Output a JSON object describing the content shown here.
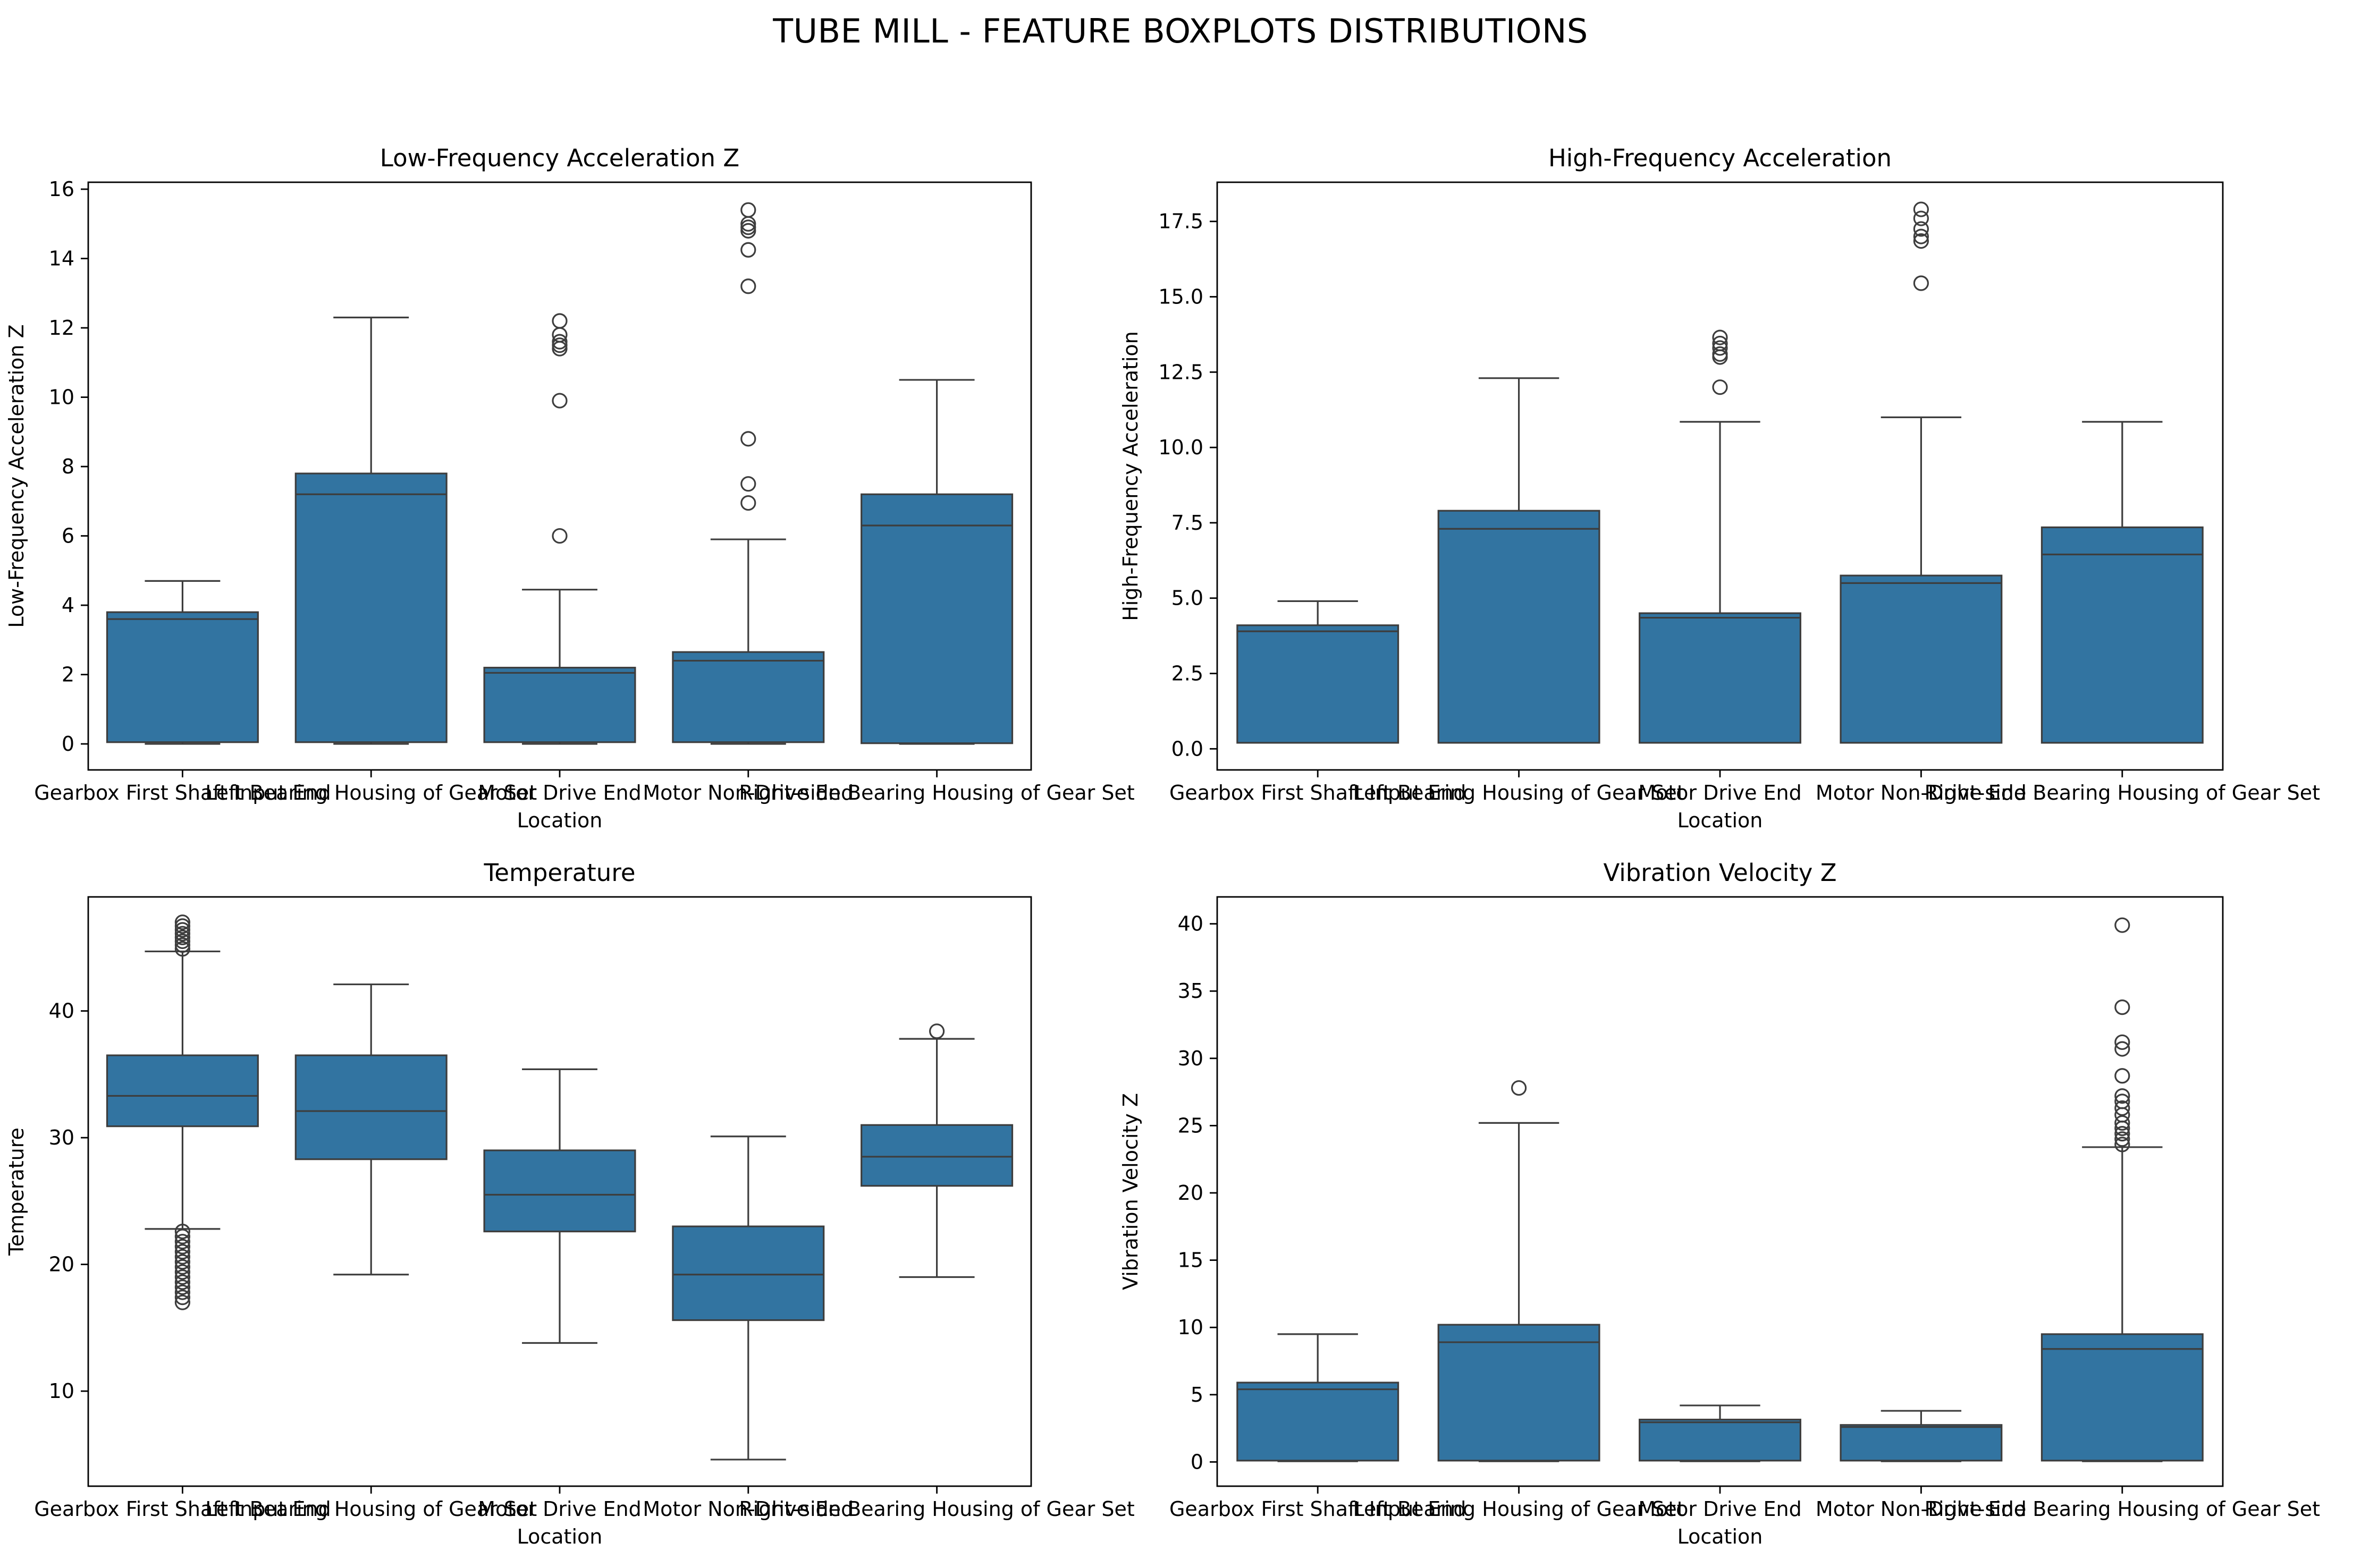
{
  "title": "TUBE MILL - FEATURE BOXPLOTS DISTRIBUTIONS",
  "colors": {
    "box_fill": "#3274a1",
    "edge": "#3d3d3d",
    "axes": "#000000"
  },
  "chart_data": [
    {
      "type": "boxplot",
      "title": "Low-Frequency Acceleration Z",
      "xlabel": "Location",
      "ylabel": "Low-Frequency Acceleration Z",
      "categories": [
        "Gearbox First Shaft Input End",
        "Left Bearing Housing of Gear Set",
        "Motor Drive End",
        "Motor Non-Drive End",
        "Right-side Bearing Housing of Gear Set"
      ],
      "ylim": [
        -0.75,
        16.2
      ],
      "yticks": [
        0,
        2,
        4,
        6,
        8,
        10,
        12,
        14,
        16
      ],
      "ytick_labels": [
        "0",
        "2",
        "4",
        "6",
        "8",
        "10",
        "12",
        "14",
        "16"
      ],
      "boxes": [
        {
          "whislo": 0.0,
          "q1": 0.05,
          "med": 3.6,
          "q3": 3.8,
          "whishi": 4.7,
          "fliers": []
        },
        {
          "whislo": 0.0,
          "q1": 0.05,
          "med": 7.2,
          "q3": 7.8,
          "whishi": 12.3,
          "fliers": []
        },
        {
          "whislo": 0.0,
          "q1": 0.05,
          "med": 2.05,
          "q3": 2.2,
          "whishi": 4.45,
          "fliers": [
            6.0,
            9.9,
            11.4,
            11.5,
            11.6,
            11.8,
            12.2
          ]
        },
        {
          "whislo": 0.0,
          "q1": 0.05,
          "med": 2.4,
          "q3": 2.65,
          "whishi": 5.9,
          "fliers": [
            6.95,
            7.5,
            8.8,
            13.2,
            14.25,
            14.8,
            14.9,
            15.0,
            15.4
          ]
        },
        {
          "whislo": 0.0,
          "q1": 0.02,
          "med": 6.3,
          "q3": 7.2,
          "whishi": 10.5,
          "fliers": []
        }
      ]
    },
    {
      "type": "boxplot",
      "title": "High-Frequency Acceleration",
      "xlabel": "Location",
      "ylabel": "High-Frequency Acceleration",
      "categories": [
        "Gearbox First Shaft Input End",
        "Left Bearing Housing of Gear Set",
        "Motor Drive End",
        "Motor Non-Drive End",
        "Right-side Bearing Housing of Gear Set"
      ],
      "ylim": [
        -0.7,
        18.8
      ],
      "yticks": [
        0,
        2.5,
        5,
        7.5,
        10,
        12.5,
        15,
        17.5
      ],
      "ytick_labels": [
        "0.0",
        "2.5",
        "5.0",
        "7.5",
        "10.0",
        "12.5",
        "15.0",
        "17.5"
      ],
      "boxes": [
        {
          "whislo": 0.2,
          "q1": 0.2,
          "med": 3.9,
          "q3": 4.1,
          "whishi": 4.9,
          "fliers": []
        },
        {
          "whislo": 0.2,
          "q1": 0.2,
          "med": 7.3,
          "q3": 7.9,
          "whishi": 12.3,
          "fliers": []
        },
        {
          "whislo": 0.2,
          "q1": 0.2,
          "med": 4.35,
          "q3": 4.5,
          "whishi": 10.85,
          "fliers": [
            12.0,
            13.0,
            13.1,
            13.3,
            13.45,
            13.65
          ]
        },
        {
          "whislo": 0.2,
          "q1": 0.2,
          "med": 5.5,
          "q3": 5.75,
          "whishi": 11.0,
          "fliers": [
            15.45,
            16.85,
            17.0,
            17.25,
            17.6,
            17.9
          ]
        },
        {
          "whislo": 0.2,
          "q1": 0.2,
          "med": 6.45,
          "q3": 7.35,
          "whishi": 10.85,
          "fliers": []
        }
      ]
    },
    {
      "type": "boxplot",
      "title": "Temperature",
      "xlabel": "Location",
      "ylabel": "Temperature",
      "categories": [
        "Gearbox First Shaft Input End",
        "Left Bearing Housing of Gear Set",
        "Motor Drive End",
        "Motor Non-Drive End",
        "Right-side Bearing Housing of Gear Set"
      ],
      "ylim": [
        2.5,
        49.0
      ],
      "yticks": [
        10,
        20,
        30,
        40
      ],
      "ytick_labels": [
        "10",
        "20",
        "30",
        "40"
      ],
      "boxes": [
        {
          "whislo": 22.8,
          "q1": 30.9,
          "med": 33.3,
          "q3": 36.5,
          "whishi": 44.7,
          "fliers": [
            17.0,
            17.4,
            17.8,
            18.2,
            18.6,
            19.0,
            19.4,
            19.8,
            20.2,
            20.6,
            21.0,
            21.4,
            21.8,
            22.2,
            22.6,
            44.9,
            45.2,
            45.5,
            45.8,
            46.1,
            46.4,
            46.7,
            47.0
          ]
        },
        {
          "whislo": 19.2,
          "q1": 28.3,
          "med": 32.1,
          "q3": 36.5,
          "whishi": 42.1,
          "fliers": []
        },
        {
          "whislo": 13.8,
          "q1": 22.6,
          "med": 25.5,
          "q3": 29.0,
          "whishi": 35.4,
          "fliers": []
        },
        {
          "whislo": 4.6,
          "q1": 15.6,
          "med": 19.2,
          "q3": 23.0,
          "whishi": 30.1,
          "fliers": []
        },
        {
          "whislo": 19.0,
          "q1": 26.2,
          "med": 28.5,
          "q3": 31.0,
          "whishi": 37.8,
          "fliers": [
            38.4
          ]
        }
      ]
    },
    {
      "type": "boxplot",
      "title": "Vibration Velocity Z",
      "xlabel": "Location",
      "ylabel": "Vibration Velocity Z",
      "categories": [
        "Gearbox First Shaft Input End",
        "Left Bearing Housing of Gear Set",
        "Motor Drive End",
        "Motor Non-Drive End",
        "Right-side Bearing Housing of Gear Set"
      ],
      "ylim": [
        -1.8,
        42.0
      ],
      "yticks": [
        0,
        5,
        10,
        15,
        20,
        25,
        30,
        35,
        40
      ],
      "ytick_labels": [
        "0",
        "5",
        "10",
        "15",
        "20",
        "25",
        "30",
        "35",
        "40"
      ],
      "boxes": [
        {
          "whislo": 0.05,
          "q1": 0.1,
          "med": 5.4,
          "q3": 5.9,
          "whishi": 9.5,
          "fliers": []
        },
        {
          "whislo": 0.05,
          "q1": 0.1,
          "med": 8.9,
          "q3": 10.2,
          "whishi": 25.2,
          "fliers": [
            27.8
          ]
        },
        {
          "whislo": 0.05,
          "q1": 0.1,
          "med": 2.95,
          "q3": 3.15,
          "whishi": 4.2,
          "fliers": []
        },
        {
          "whislo": 0.05,
          "q1": 0.1,
          "med": 2.6,
          "q3": 2.75,
          "whishi": 3.8,
          "fliers": []
        },
        {
          "whislo": 0.05,
          "q1": 0.1,
          "med": 8.4,
          "q3": 9.5,
          "whishi": 23.4,
          "fliers": [
            23.6,
            24.0,
            24.4,
            24.8,
            25.2,
            25.8,
            26.3,
            26.8,
            27.2,
            28.7,
            30.7,
            31.2,
            33.8,
            39.9
          ]
        }
      ]
    }
  ]
}
